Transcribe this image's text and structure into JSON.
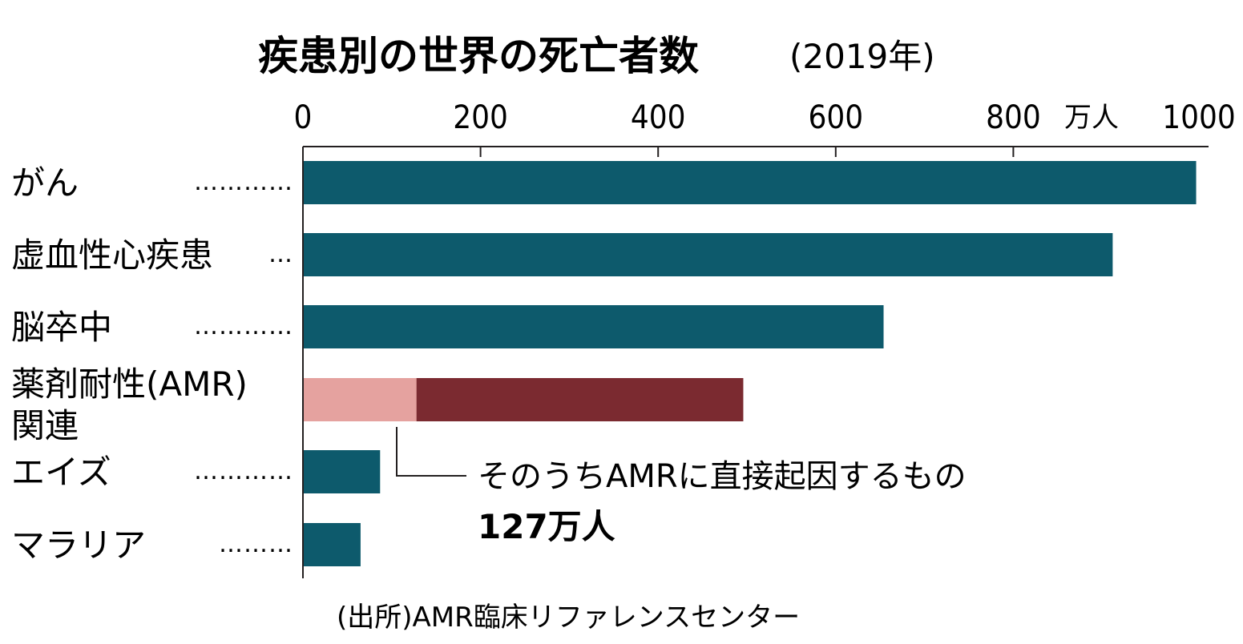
{
  "chart_data": {
    "type": "bar",
    "orientation": "horizontal",
    "title": "疾患別の世界の死亡者数",
    "title_year": "(2019年)",
    "unit": "万人",
    "x_ticks": [
      0,
      200,
      400,
      600,
      800,
      1000
    ],
    "xlim": [
      0,
      1000
    ],
    "categories": [
      {
        "label": "がん",
        "leader": "…………",
        "value": 1005,
        "color": "#0d5a6c"
      },
      {
        "label": "虚血性心疾患",
        "leader": "…",
        "value": 911,
        "color": "#0d5a6c"
      },
      {
        "label": "脳卒中",
        "leader": "…………",
        "value": 653,
        "color": "#0d5a6c"
      },
      {
        "label_lines": [
          "薬剤耐性(AMR)",
          "関連"
        ],
        "value": 495,
        "sub_value": 127,
        "color": "#7b2a30",
        "sub_color": "#e5a29f"
      },
      {
        "label": "エイズ",
        "leader": "…………",
        "value": 86,
        "color": "#0d5a6c"
      },
      {
        "label": "マラリア",
        "leader": "………",
        "value": 64,
        "color": "#0d5a6c"
      }
    ],
    "annotation": {
      "text": "そのうちAMRに直接起因するもの",
      "value_text": "127万人"
    },
    "source": "(出所)AMR臨床リファレンスセンター",
    "grid": false,
    "legend": "none"
  }
}
